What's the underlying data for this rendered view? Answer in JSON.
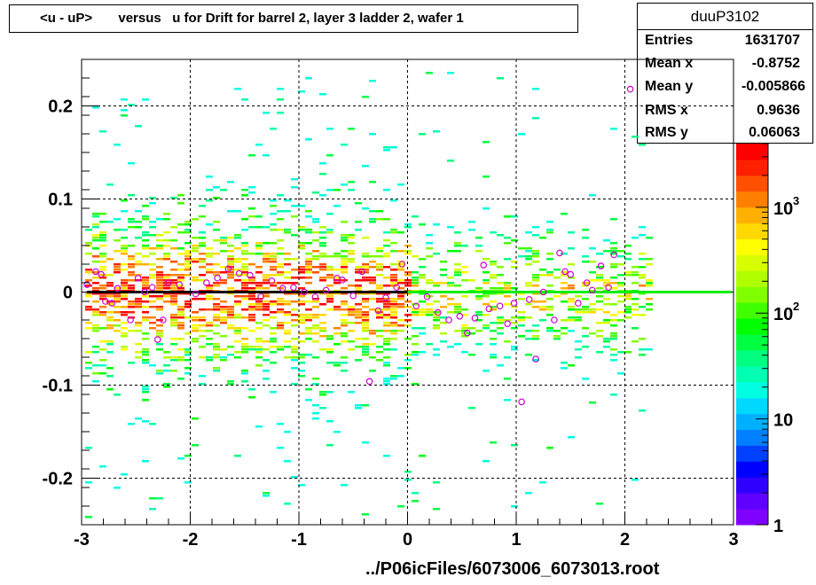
{
  "title": "<u - uP>       versus   u for Drift for barrel 2, layer 3 ladder 2, wafer 1",
  "footer": "../P06icFiles/6073006_6073013.root",
  "stats": {
    "name": "duuP3102",
    "rows": [
      {
        "label": "Entries",
        "value": "1631707"
      },
      {
        "label": "Mean x",
        "value": "-0.8752"
      },
      {
        "label": "Mean y",
        "value": "-0.005866"
      },
      {
        "label": "RMS x",
        "value": "0.9636"
      },
      {
        "label": "RMS y",
        "value": "0.06063"
      }
    ]
  },
  "chart_data": {
    "type": "heatmap",
    "title": "<u - uP>       versus   u for Drift for barrel 2, layer 3 ladder 2, wafer 1",
    "xlabel": "",
    "ylabel": "",
    "xlim": [
      -3,
      3
    ],
    "ylim": [
      -0.25,
      0.25
    ],
    "x_ticks": [
      "-3",
      "-2",
      "-1",
      "0",
      "1",
      "2",
      "3"
    ],
    "y_ticks": [
      "-0.2",
      "-0.1",
      "0",
      "0.1",
      "0.2"
    ],
    "grid": true,
    "z_scale": "log",
    "z_ticks": [
      {
        "value": 1,
        "base": "1",
        "exp": ""
      },
      {
        "value": 10,
        "base": "10",
        "exp": ""
      },
      {
        "value": 100,
        "base": "10",
        "exp": "2"
      },
      {
        "value": 1000,
        "base": "10",
        "exp": "3"
      }
    ],
    "zlim": [
      1,
      4000
    ],
    "palette": [
      "#8000ff",
      "#6000ff",
      "#3000ff",
      "#0000ff",
      "#0040ff",
      "#0080ff",
      "#00b0ff",
      "#00d8ff",
      "#00ffe0",
      "#00ffb0",
      "#00ff80",
      "#00ff40",
      "#00ff00",
      "#40ff00",
      "#80ff00",
      "#b0ff00",
      "#d8ff00",
      "#ffff00",
      "#ffd800",
      "#ffb000",
      "#ff8000",
      "#ff5000",
      "#ff2000",
      "#ff0000"
    ],
    "profile_points": [
      {
        "x": -2.95,
        "y": 0.008
      },
      {
        "x": -2.87,
        "y": 0.022
      },
      {
        "x": -2.82,
        "y": 0.019
      },
      {
        "x": -2.78,
        "y": -0.01
      },
      {
        "x": -2.72,
        "y": -0.012
      },
      {
        "x": -2.67,
        "y": 0.004
      },
      {
        "x": -2.55,
        "y": -0.03
      },
      {
        "x": -2.48,
        "y": 0.015
      },
      {
        "x": -2.42,
        "y": 0.0
      },
      {
        "x": -2.35,
        "y": 0.005
      },
      {
        "x": -2.3,
        "y": -0.051
      },
      {
        "x": -2.25,
        "y": -0.03
      },
      {
        "x": -2.2,
        "y": 0.01
      },
      {
        "x": -2.1,
        "y": 0.008
      },
      {
        "x": -1.95,
        "y": -0.002
      },
      {
        "x": -1.85,
        "y": 0.01
      },
      {
        "x": -1.75,
        "y": 0.015
      },
      {
        "x": -1.65,
        "y": 0.025
      },
      {
        "x": -1.55,
        "y": 0.02
      },
      {
        "x": -1.45,
        "y": 0.018
      },
      {
        "x": -1.35,
        "y": -0.005
      },
      {
        "x": -1.25,
        "y": 0.012
      },
      {
        "x": -1.15,
        "y": 0.004
      },
      {
        "x": -1.05,
        "y": 0.005
      },
      {
        "x": -0.95,
        "y": 0.0
      },
      {
        "x": -0.85,
        "y": -0.005
      },
      {
        "x": -0.75,
        "y": 0.002
      },
      {
        "x": -0.65,
        "y": 0.015
      },
      {
        "x": -0.6,
        "y": 0.013
      },
      {
        "x": -0.5,
        "y": -0.004
      },
      {
        "x": -0.42,
        "y": 0.022
      },
      {
        "x": -0.35,
        "y": -0.096
      },
      {
        "x": -0.27,
        "y": -0.02
      },
      {
        "x": -0.2,
        "y": -0.006
      },
      {
        "x": -0.1,
        "y": 0.005
      },
      {
        "x": -0.05,
        "y": 0.03
      },
      {
        "x": 0.08,
        "y": -0.015
      },
      {
        "x": 0.18,
        "y": -0.005
      },
      {
        "x": 0.28,
        "y": -0.022
      },
      {
        "x": 0.38,
        "y": -0.03
      },
      {
        "x": 0.48,
        "y": -0.026
      },
      {
        "x": 0.55,
        "y": -0.044
      },
      {
        "x": 0.62,
        "y": -0.028
      },
      {
        "x": 0.7,
        "y": 0.029
      },
      {
        "x": 0.75,
        "y": -0.018
      },
      {
        "x": 0.85,
        "y": -0.015
      },
      {
        "x": 0.92,
        "y": -0.034
      },
      {
        "x": 0.98,
        "y": -0.012
      },
      {
        "x": 1.05,
        "y": -0.118
      },
      {
        "x": 1.12,
        "y": -0.008
      },
      {
        "x": 1.18,
        "y": -0.072
      },
      {
        "x": 1.25,
        "y": 0.0
      },
      {
        "x": 1.35,
        "y": -0.03
      },
      {
        "x": 1.4,
        "y": 0.042
      },
      {
        "x": 1.45,
        "y": 0.022
      },
      {
        "x": 1.5,
        "y": 0.019
      },
      {
        "x": 1.57,
        "y": -0.012
      },
      {
        "x": 1.65,
        "y": 0.01
      },
      {
        "x": 1.7,
        "y": 0.002
      },
      {
        "x": 1.78,
        "y": 0.028
      },
      {
        "x": 1.85,
        "y": 0.005
      },
      {
        "x": 1.9,
        "y": 0.04
      },
      {
        "x": 2.05,
        "y": 0.218
      }
    ],
    "fit_lines": [
      {
        "x": [
          -2.95,
          0.0
        ],
        "y": [
          0.0,
          0.0
        ],
        "color": "#000000"
      },
      {
        "x": [
          0.0,
          2.98
        ],
        "y": [
          0.0,
          0.0
        ],
        "color": "#00ee00"
      }
    ]
  }
}
